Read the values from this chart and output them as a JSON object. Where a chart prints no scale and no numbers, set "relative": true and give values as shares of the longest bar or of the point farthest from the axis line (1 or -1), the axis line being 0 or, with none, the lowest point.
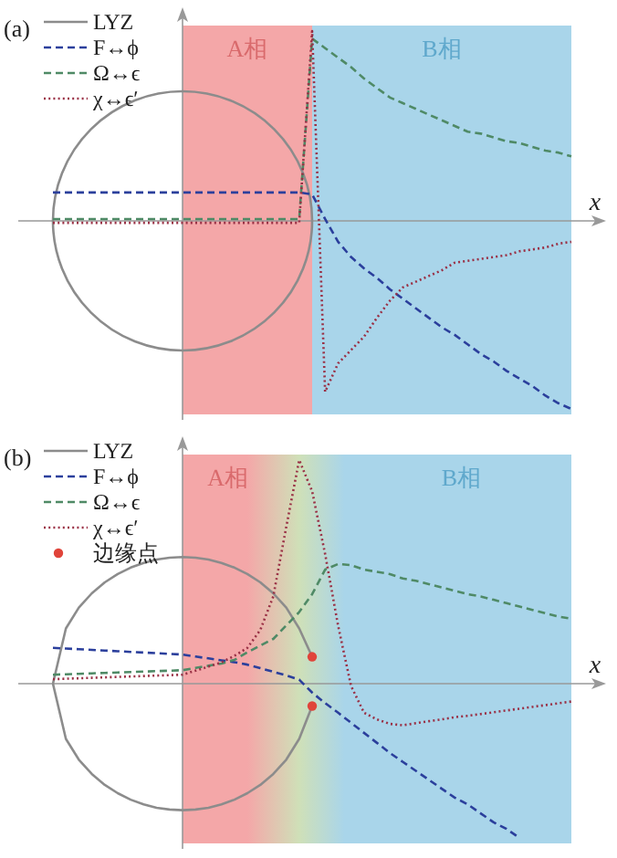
{
  "chart_data": [
    {
      "type": "line",
      "title": "(a)",
      "xlabel": "x",
      "relative": true,
      "legend": "top left",
      "categories": [
        null,
        null,
        null,
        null,
        null,
        null,
        null,
        null,
        null,
        null,
        null,
        null,
        null,
        null,
        null,
        null,
        null,
        null,
        null,
        null,
        null,
        null,
        null,
        null,
        null,
        null,
        null,
        null,
        null,
        null,
        null,
        null,
        null,
        null,
        null,
        null,
        null,
        null,
        null,
        null,
        null
      ],
      "annotations": [
        "A相",
        "B相",
        "LYZ"
      ],
      "series": [
        {
          "name": "F↔ϕ",
          "color": "#2b3f9c",
          "line_style": "dashed",
          "values": [
            0.15,
            0.15,
            0.15,
            0.15,
            0.15,
            0.15,
            0.15,
            0.15,
            0.15,
            0.15,
            0.15,
            0.15,
            0.15,
            0.15,
            0.15,
            0.15,
            0.15,
            0.15,
            0.15,
            0.15,
            0.14,
            0.01,
            -0.11,
            -0.19,
            -0.25,
            -0.3,
            -0.36,
            -0.41,
            -0.46,
            -0.51,
            -0.56,
            -0.6,
            -0.65,
            -0.7,
            -0.74,
            -0.79,
            -0.83,
            -0.87,
            -0.92,
            -0.96,
            -0.99
          ]
        },
        {
          "name": "Ω↔ϵ",
          "color": "#4f8a66",
          "line_style": "dashed",
          "values": [
            0.01,
            0.01,
            0.01,
            0.01,
            0.01,
            0.01,
            0.01,
            0.01,
            0.01,
            0.01,
            0.01,
            0.01,
            0.01,
            0.01,
            0.01,
            0.01,
            0.01,
            0.01,
            0.01,
            0.01,
            0.96,
            0.91,
            0.86,
            0.81,
            0.75,
            0.7,
            0.65,
            0.62,
            0.59,
            0.56,
            0.53,
            0.5,
            0.47,
            0.46,
            0.44,
            0.42,
            0.41,
            0.39,
            0.37,
            0.36,
            0.34
          ]
        },
        {
          "name": "χ↔ϵ′",
          "color": "#9a3045",
          "line_style": "dotted",
          "values": [
            -0.01,
            -0.01,
            -0.01,
            -0.01,
            -0.01,
            -0.01,
            -0.01,
            -0.01,
            -0.01,
            -0.01,
            -0.01,
            -0.01,
            -0.01,
            -0.01,
            -0.01,
            -0.01,
            -0.01,
            -0.01,
            -0.01,
            -0.01,
            1.0,
            -0.9,
            -0.75,
            -0.68,
            -0.61,
            -0.51,
            -0.42,
            -0.35,
            -0.32,
            -0.29,
            -0.26,
            -0.22,
            -0.21,
            -0.2,
            -0.19,
            -0.18,
            -0.16,
            -0.15,
            -0.14,
            -0.12,
            -0.11
          ]
        }
      ]
    },
    {
      "type": "line",
      "title": "(b)",
      "xlabel": "x",
      "relative": true,
      "legend": "top left",
      "categories": [
        null,
        null,
        null,
        null,
        null,
        null,
        null,
        null,
        null,
        null,
        null,
        null,
        null,
        null,
        null,
        null,
        null,
        null,
        null,
        null,
        null,
        null,
        null,
        null,
        null,
        null,
        null,
        null,
        null,
        null,
        null,
        null,
        null,
        null,
        null,
        null,
        null,
        null,
        null,
        null,
        null
      ],
      "annotations": [
        "A相",
        "B相"
      ],
      "series": [
        {
          "name": "LYZ",
          "color": "#8c8c8c",
          "line_style": "solid",
          "values": [
            0,
            0.247,
            0.34,
            0.404,
            0.453,
            0.49,
            0.519,
            0.54,
            0.555,
            0.563,
            0.566,
            0.563,
            0.555,
            0.54,
            0.519,
            0.49,
            0.453,
            0.404,
            0.34,
            0.247,
            0.12,
            null,
            null,
            null,
            null,
            null,
            null,
            null,
            null,
            null,
            null,
            null,
            null,
            null,
            null,
            null,
            null,
            null,
            null,
            null,
            null
          ]
        },
        {
          "color": "#8c8c8c",
          "line_style": "solid",
          "values": [
            0,
            -0.247,
            -0.34,
            -0.404,
            -0.453,
            -0.49,
            -0.519,
            -0.54,
            -0.555,
            -0.563,
            -0.566,
            -0.563,
            -0.555,
            -0.54,
            -0.519,
            -0.49,
            -0.453,
            -0.404,
            -0.34,
            -0.247,
            -0.1,
            null,
            null,
            null,
            null,
            null,
            null,
            null,
            null,
            null,
            null,
            null,
            null,
            null,
            null,
            null,
            null,
            null,
            null,
            null,
            null
          ]
        },
        {
          "name": "F↔ϕ",
          "color": "#2b3f9c",
          "line_style": "dashed",
          "values": [
            0.16,
            0.157,
            0.154,
            0.151,
            0.148,
            0.145,
            0.142,
            0.139,
            0.136,
            0.133,
            0.13,
            0.121,
            0.113,
            0.104,
            0.096,
            0.085,
            0.069,
            0.053,
            0.037,
            0.018,
            -0.04,
            -0.087,
            -0.13,
            -0.175,
            -0.22,
            -0.265,
            -0.31,
            -0.35,
            -0.39,
            -0.43,
            -0.47,
            -0.51,
            -0.54,
            -0.58,
            -0.62,
            -0.65,
            -0.69,
            null,
            null,
            null,
            null
          ]
        },
        {
          "name": "Ω↔ϵ",
          "color": "#4f8a66",
          "line_style": "dashed",
          "values": [
            0.04,
            0.042,
            0.044,
            0.046,
            0.048,
            0.05,
            0.052,
            0.054,
            0.056,
            0.058,
            0.06,
            0.07,
            0.08,
            0.09,
            0.106,
            0.14,
            0.17,
            0.2,
            0.26,
            0.32,
            0.4,
            0.51,
            0.535,
            0.53,
            0.51,
            0.5,
            0.49,
            0.47,
            0.46,
            0.445,
            0.43,
            0.415,
            0.4,
            0.39,
            0.375,
            0.36,
            0.345,
            0.33,
            0.315,
            0.3,
            0.29
          ]
        },
        {
          "name": "χ↔ϵ′",
          "color": "#9a3045",
          "line_style": "dotted",
          "values": [
            0.02,
            0.022,
            0.024,
            0.026,
            0.028,
            0.03,
            0.032,
            0.034,
            0.036,
            0.038,
            0.04,
            0.058,
            0.076,
            0.095,
            0.124,
            0.16,
            0.24,
            0.39,
            0.7,
            1.0,
            0.86,
            0.58,
            0.26,
            -0.01,
            -0.13,
            -0.16,
            -0.18,
            -0.186,
            -0.177,
            -0.168,
            -0.16,
            -0.15,
            -0.144,
            -0.136,
            -0.128,
            -0.12,
            -0.112,
            -0.104,
            -0.096,
            -0.088,
            -0.08
          ]
        },
        {
          "name": "边缘点",
          "type": "scatter",
          "marker": "circle",
          "color": "#e0443a",
          "values": [
            null,
            null,
            null,
            null,
            null,
            null,
            null,
            null,
            null,
            null,
            null,
            null,
            null,
            null,
            null,
            null,
            null,
            null,
            null,
            null,
            0.12,
            null,
            null,
            null,
            null,
            null,
            null,
            null,
            null,
            null,
            null,
            null,
            null,
            null,
            null,
            null,
            null,
            null,
            null,
            null,
            null
          ]
        },
        {
          "type": "scatter",
          "marker": "circle",
          "color": "#e0443a",
          "values": [
            null,
            null,
            null,
            null,
            null,
            null,
            null,
            null,
            null,
            null,
            null,
            null,
            null,
            null,
            null,
            null,
            null,
            null,
            null,
            null,
            -0.1,
            null,
            null,
            null,
            null,
            null,
            null,
            null,
            null,
            null,
            null,
            null,
            null,
            null,
            null,
            null,
            null,
            null,
            null,
            null,
            null
          ]
        }
      ]
    }
  ]
}
